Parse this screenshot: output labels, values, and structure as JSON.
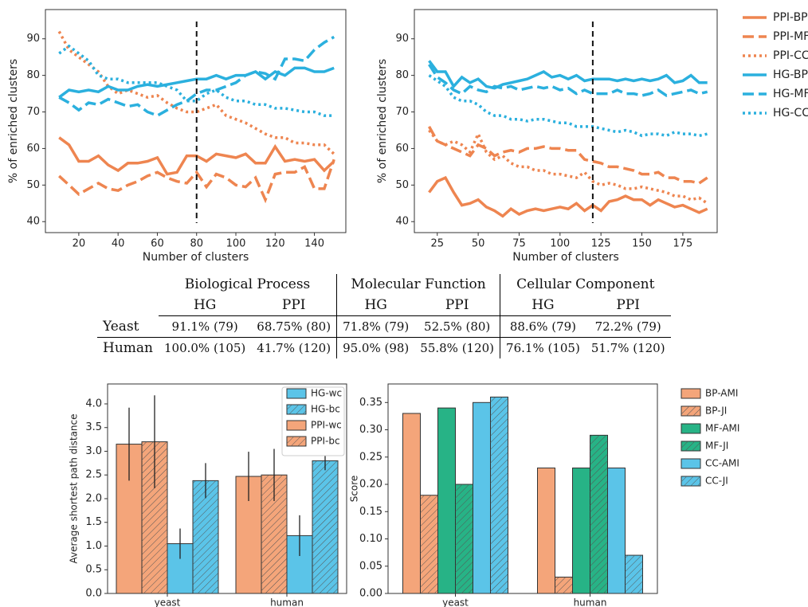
{
  "chart_data": [
    {
      "type": "line",
      "xlabel": "Number of clusters",
      "ylabel": "% of enriched clusters",
      "x": [
        10,
        15,
        20,
        25,
        30,
        35,
        40,
        45,
        50,
        55,
        60,
        65,
        70,
        75,
        80,
        85,
        90,
        95,
        100,
        105,
        110,
        115,
        120,
        125,
        130,
        135,
        140,
        145,
        150
      ],
      "xlim": [
        3,
        156
      ],
      "xticks": [
        20,
        40,
        60,
        80,
        100,
        120,
        140
      ],
      "ylim": [
        37,
        98
      ],
      "yticks": [
        40,
        50,
        60,
        70,
        80,
        90
      ],
      "vline": 80,
      "series": [
        {
          "color": "#ee8550",
          "dash": "solid",
          "values": [
            63,
            61,
            56.5,
            56.5,
            58,
            55.5,
            54,
            56,
            56,
            56.5,
            57.5,
            53,
            53.5,
            58,
            58,
            56.5,
            58.5,
            58,
            57.5,
            58.5,
            56,
            56,
            60.5,
            56.5,
            57,
            56.5,
            57,
            54,
            56.5
          ]
        },
        {
          "color": "#ee8550",
          "dash": "dashed",
          "values": [
            52.5,
            50,
            47.5,
            49,
            50.5,
            49,
            48.5,
            50,
            51,
            52.5,
            53.5,
            52,
            51,
            50.5,
            53.5,
            49.5,
            53,
            52,
            50,
            49.5,
            52,
            46,
            53,
            53.5,
            53.5,
            55,
            49,
            49,
            57
          ]
        },
        {
          "color": "#ee8550",
          "dash": "dotted",
          "values": [
            92,
            87,
            85,
            83,
            81,
            77,
            75,
            76,
            75,
            74,
            74.5,
            72.5,
            71,
            70,
            70,
            71,
            72,
            69,
            68,
            67,
            65.5,
            64,
            63,
            63,
            61.5,
            61.5,
            61,
            61,
            58.5
          ]
        },
        {
          "color": "#2bb0de",
          "dash": "solid",
          "values": [
            74,
            76,
            75.5,
            76,
            75.5,
            77,
            76,
            76,
            77,
            77.5,
            77,
            77.5,
            78,
            78.5,
            79,
            79,
            80,
            79,
            80,
            80,
            81,
            79,
            81,
            80,
            82,
            82,
            81,
            81,
            82
          ]
        },
        {
          "color": "#2bb0de",
          "dash": "dashed",
          "values": [
            74,
            72.5,
            70.5,
            72.5,
            72,
            73.5,
            72.5,
            71.5,
            72,
            70,
            69,
            70.5,
            72,
            73,
            75,
            76,
            76,
            77,
            78,
            80,
            81,
            80.5,
            79,
            84.5,
            84.5,
            84,
            87,
            89,
            90.5
          ]
        },
        {
          "color": "#2bb0de",
          "dash": "dotted",
          "values": [
            86,
            88,
            86,
            84,
            80,
            79,
            79,
            78,
            78,
            78,
            78,
            77,
            76,
            73,
            73,
            75,
            76,
            74,
            73,
            73,
            72,
            72,
            71,
            71,
            70.5,
            70,
            70,
            69,
            69
          ]
        }
      ]
    },
    {
      "type": "line",
      "xlabel": "Number of clusters",
      "ylabel": "% of enriched clusters",
      "x": [
        20,
        25,
        30,
        35,
        40,
        45,
        50,
        55,
        60,
        65,
        70,
        75,
        80,
        85,
        90,
        95,
        100,
        105,
        110,
        115,
        120,
        125,
        130,
        135,
        140,
        145,
        150,
        155,
        160,
        165,
        170,
        175,
        180,
        185,
        190
      ],
      "xlim": [
        11,
        196
      ],
      "xticks": [
        25,
        50,
        75,
        100,
        125,
        150,
        175
      ],
      "ylim": [
        37,
        98
      ],
      "yticks": [
        40,
        50,
        60,
        70,
        80,
        90
      ],
      "vline": 120,
      "series": [
        {
          "name": "PPI-BP",
          "color": "#ee8550",
          "dash": "solid",
          "values": [
            48,
            51,
            52,
            48,
            44.5,
            45,
            46,
            44,
            43,
            41.5,
            43.5,
            42,
            43,
            43.5,
            43,
            43.5,
            44,
            43.5,
            45,
            43,
            44.5,
            43,
            45.5,
            46,
            47,
            46,
            46,
            44.5,
            46,
            45,
            44,
            44.5,
            43.5,
            42.5,
            43.5
          ]
        },
        {
          "name": "PPI-MF",
          "color": "#ee8550",
          "dash": "dashed",
          "values": [
            66,
            62,
            61,
            60,
            59,
            58,
            61,
            60,
            58,
            59,
            59.5,
            59,
            60,
            60,
            60.5,
            60,
            60,
            59.5,
            59.5,
            57,
            56.5,
            56,
            55,
            55,
            54.5,
            54,
            53,
            53,
            53.5,
            52,
            52,
            51,
            51,
            50.5,
            52
          ]
        },
        {
          "name": "PPI-CC",
          "color": "#ee8550",
          "dash": "dotted",
          "values": [
            65,
            62,
            61,
            62,
            61,
            59,
            64,
            59,
            57,
            58,
            56,
            55,
            55,
            54,
            54,
            53,
            53,
            52.5,
            52,
            53.5,
            51,
            50,
            50.5,
            50,
            49,
            49,
            49.5,
            49,
            48.5,
            48,
            47,
            47,
            46,
            46.5,
            45
          ]
        },
        {
          "name": "HG-BP",
          "color": "#2bb0de",
          "dash": "solid",
          "values": [
            84,
            81,
            81,
            77,
            79.5,
            78,
            79,
            77,
            76.5,
            77.5,
            78,
            78.5,
            79,
            80,
            81,
            79.5,
            80,
            79,
            80,
            78.5,
            79,
            79,
            79,
            78.5,
            79,
            78.5,
            79,
            78.5,
            79,
            80,
            78,
            78.5,
            80,
            78,
            78
          ]
        },
        {
          "name": "HG-MF",
          "color": "#2bb0de",
          "dash": "dashed",
          "values": [
            83,
            79.5,
            78,
            76,
            75,
            77,
            76,
            75.5,
            77,
            76.5,
            77,
            76,
            76.5,
            77,
            76.5,
            77,
            76,
            76.5,
            75,
            76,
            75,
            75,
            75,
            76,
            75,
            75,
            74.5,
            75,
            76,
            74.5,
            75,
            75.5,
            76,
            75,
            75.5
          ]
        },
        {
          "name": "HG-CC",
          "color": "#2bb0de",
          "dash": "dotted",
          "values": [
            80,
            78.5,
            77,
            74,
            73,
            73,
            72,
            70,
            69,
            69,
            68,
            68,
            67.5,
            68,
            68,
            67.5,
            67,
            67,
            66,
            66,
            66,
            65.5,
            65,
            64.5,
            65,
            64.5,
            63.5,
            64,
            64,
            63.5,
            64.5,
            64,
            64,
            63.5,
            64
          ]
        }
      ]
    },
    {
      "type": "bar",
      "ylabel": "Average shortest path distance",
      "categories": [
        "yeast",
        "human"
      ],
      "ylim": [
        0,
        4.42
      ],
      "yticks": [
        {
          "value": 0,
          "label": "0.0"
        },
        {
          "value": 0.5,
          "label": "0.5"
        },
        {
          "value": 1,
          "label": "1.0"
        },
        {
          "value": 1.5,
          "label": "1.5"
        },
        {
          "value": 2,
          "label": "2.0"
        },
        {
          "value": 2.5,
          "label": "2.5"
        },
        {
          "value": 3,
          "label": "3.0"
        },
        {
          "value": 3.5,
          "label": "3.5"
        },
        {
          "value": 4,
          "label": "4.0"
        }
      ],
      "legend": "upper right",
      "series": [
        {
          "name": "PPI-wc",
          "color": "#f4a57a",
          "hatch": false,
          "values": [
            3.15,
            2.47
          ],
          "errors": [
            0.77,
            0.52
          ]
        },
        {
          "name": "PPI-bc",
          "color": "#f4a57a",
          "hatch": true,
          "values": [
            3.2,
            2.5
          ],
          "errors": [
            0.98,
            0.55
          ]
        },
        {
          "name": "HG-wc",
          "color": "#5bc4e8",
          "hatch": false,
          "values": [
            1.05,
            1.22
          ],
          "errors": [
            0.32,
            0.43
          ]
        },
        {
          "name": "HG-bc",
          "color": "#5bc4e8",
          "hatch": true,
          "values": [
            2.38,
            2.8
          ],
          "errors": [
            0.37,
            0.2
          ]
        }
      ]
    },
    {
      "type": "bar",
      "ylabel": "Score",
      "categories": [
        "yeast",
        "human"
      ],
      "ylim": [
        0,
        0.384
      ],
      "yticks": [
        {
          "value": 0,
          "label": "0.00"
        },
        {
          "value": 0.05,
          "label": "0.05"
        },
        {
          "value": 0.1,
          "label": "0.10"
        },
        {
          "value": 0.15,
          "label": "0.15"
        },
        {
          "value": 0.2,
          "label": "0.20"
        },
        {
          "value": 0.25,
          "label": "0.25"
        },
        {
          "value": 0.3,
          "label": "0.30"
        },
        {
          "value": 0.35,
          "label": "0.35"
        }
      ],
      "legend": "outside right",
      "series": [
        {
          "name": "BP-AMI",
          "color": "#f4a57a",
          "hatch": false,
          "values": [
            0.33,
            0.23
          ]
        },
        {
          "name": "BP-JI",
          "color": "#f4a57a",
          "hatch": true,
          "values": [
            0.18,
            0.03
          ]
        },
        {
          "name": "MF-AMI",
          "color": "#27b386",
          "hatch": false,
          "values": [
            0.34,
            0.23
          ]
        },
        {
          "name": "MF-JI",
          "color": "#27b386",
          "hatch": true,
          "values": [
            0.2,
            0.29
          ]
        },
        {
          "name": "CC-AMI",
          "color": "#5bc4e8",
          "hatch": false,
          "values": [
            0.35,
            0.23
          ]
        },
        {
          "name": "CC-JI",
          "color": "#5bc4e8",
          "hatch": true,
          "values": [
            0.36,
            0.07
          ]
        }
      ]
    }
  ],
  "table": {
    "groups": [
      "Biological Process",
      "Molecular Function",
      "Cellular Component"
    ],
    "subheaders": [
      "HG",
      "PPI",
      "HG",
      "PPI",
      "HG",
      "PPI"
    ],
    "rows": [
      [
        "Yeast",
        "91.1% (79)",
        "68.75% (80)",
        "71.8% (79)",
        "52.5% (80)",
        "88.6% (79)",
        "72.2% (79)"
      ],
      [
        "Human",
        "100.0% (105)",
        "41.7% (120)",
        "95.0% (98)",
        "55.8% (120)",
        "76.1% (105)",
        "51.7% (120)"
      ]
    ]
  }
}
